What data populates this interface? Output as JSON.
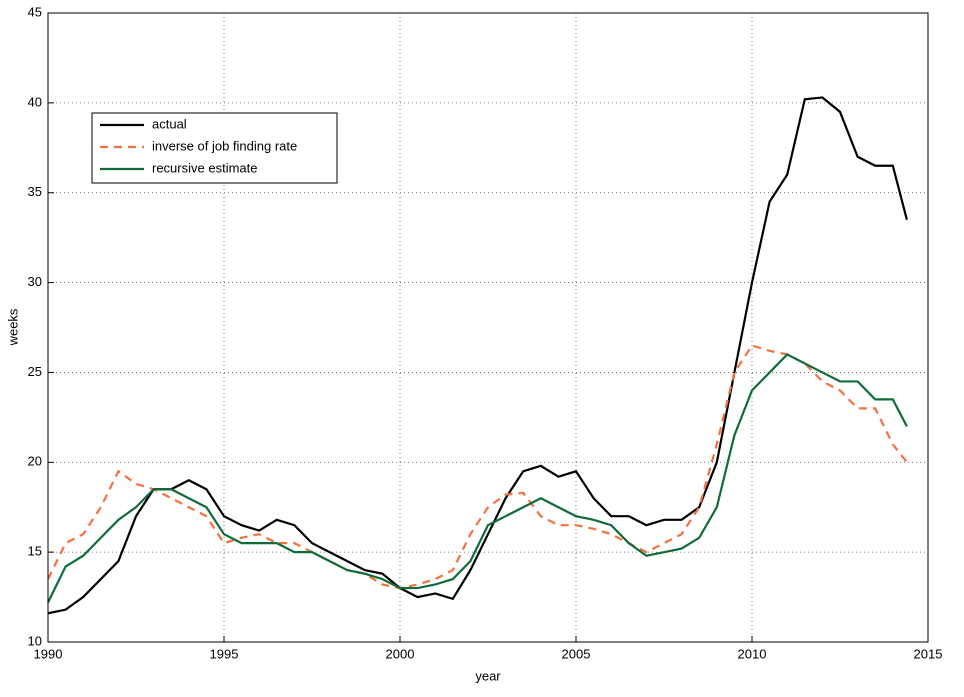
{
  "chart_data": {
    "type": "line",
    "xlabel": "year",
    "ylabel": "weeks",
    "x": [
      1990,
      1990.5,
      1991,
      1991.5,
      1992,
      1992.5,
      1993,
      1993.5,
      1994,
      1994.5,
      1995,
      1995.5,
      1996,
      1996.5,
      1997,
      1997.5,
      1998,
      1998.5,
      1999,
      1999.5,
      2000,
      2000.5,
      2001,
      2001.5,
      2002,
      2002.5,
      2003,
      2003.5,
      2004,
      2004.5,
      2005,
      2005.5,
      2006,
      2006.5,
      2007,
      2007.5,
      2008,
      2008.5,
      2009,
      2009.5,
      2010,
      2010.5,
      2011,
      2011.5,
      2012,
      2012.5,
      2013,
      2013.5,
      2014,
      2014.4
    ],
    "series": [
      {
        "name": "actual",
        "color": "#000000",
        "line_style": "solid",
        "values": [
          11.6,
          11.8,
          12.5,
          13.5,
          14.5,
          17,
          18.5,
          18.5,
          19,
          18.5,
          17,
          16.5,
          16.2,
          16.8,
          16.5,
          15.5,
          15,
          14.5,
          14,
          13.8,
          13,
          12.5,
          12.7,
          12.4,
          14,
          16,
          18,
          19.5,
          19.8,
          19.2,
          19.5,
          18,
          17,
          17,
          16.5,
          16.8,
          16.8,
          17.5,
          20,
          25,
          30,
          34.5,
          36,
          40.2,
          40.3,
          39.5,
          37,
          36.5,
          36.5,
          33.5
        ]
      },
      {
        "name": "inverse of job finding rate",
        "color": "#f4713f",
        "line_style": "dashed",
        "values": [
          13.5,
          15.5,
          16,
          17.5,
          19.5,
          18.8,
          18.5,
          18,
          17.5,
          17,
          15.5,
          15.8,
          16,
          15.5,
          15.5,
          15,
          14.5,
          14,
          13.8,
          13.2,
          13,
          13.2,
          13.5,
          14,
          16,
          17.5,
          18.2,
          18.3,
          17,
          16.5,
          16.5,
          16.3,
          16,
          15.5,
          15,
          15.5,
          16,
          17.5,
          21,
          25,
          26.5,
          26.2,
          26,
          25.5,
          24.5,
          24,
          23,
          23,
          21,
          20
        ]
      },
      {
        "name": "recursive estimate",
        "color": "#0f6b3a",
        "line_style": "solid",
        "values": [
          12.2,
          14.2,
          14.8,
          15.8,
          16.8,
          17.5,
          18.5,
          18.5,
          18,
          17.5,
          16,
          15.5,
          15.5,
          15.5,
          15,
          15,
          14.5,
          14,
          13.8,
          13.5,
          13,
          13,
          13.2,
          13.5,
          14.5,
          16.5,
          17,
          17.5,
          18,
          17.5,
          17,
          16.8,
          16.5,
          15.5,
          14.8,
          15,
          15.2,
          15.8,
          17.5,
          21.5,
          24,
          25,
          26,
          25.5,
          25,
          24.5,
          24.5,
          23.5,
          23.5,
          22
        ]
      }
    ],
    "xlim": [
      1990,
      2015
    ],
    "xticks": [
      1990,
      1995,
      2000,
      2005,
      2010,
      2015
    ],
    "ylim": [
      10,
      45
    ],
    "yticks": [
      10,
      15,
      20,
      25,
      30,
      35,
      40,
      45
    ],
    "grid": true,
    "legend": "upper left"
  }
}
